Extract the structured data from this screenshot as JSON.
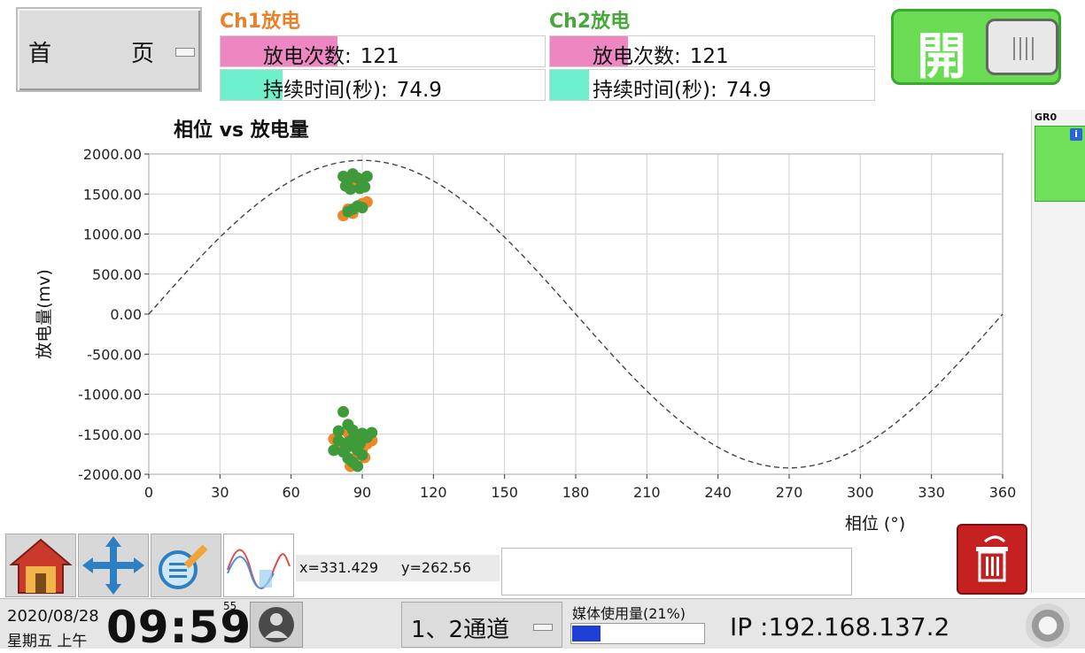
{
  "header": {
    "home_dropdown": {
      "label_a": "首",
      "label_b": "页"
    },
    "channels": [
      {
        "title": "Ch1放电",
        "title_color": "#e8822a",
        "discharge_count_label": "放电次数:",
        "discharge_count": "121",
        "duration_label": "持续时间(秒):",
        "duration": "74.9",
        "count_fill_fraction": 0.36,
        "duration_fill_fraction": 0.19,
        "count_color": "#ee86c2",
        "duration_color": "#6ef0cd"
      },
      {
        "title": "Ch2放电",
        "title_color": "#46a83a",
        "discharge_count_label": "放电次数:",
        "discharge_count": "121",
        "duration_label": "持续时间(秒):",
        "duration": "74.9",
        "count_fill_fraction": 0.24,
        "duration_fill_fraction": 0.12,
        "count_color": "#ee86c2",
        "duration_color": "#6ef0cd"
      }
    ],
    "power_toggle": {
      "state_label": "開",
      "color": "#69dc53"
    }
  },
  "chart_data": {
    "type": "scatter",
    "title": "相位 vs 放电量",
    "xlabel": "相位 (°)",
    "ylabel": "放电量(mv)",
    "xlim": [
      0,
      360
    ],
    "ylim": [
      -2000,
      2000
    ],
    "x_ticks": [
      "0",
      "30",
      "60",
      "90",
      "120",
      "150",
      "180",
      "210",
      "240",
      "270",
      "300",
      "330",
      "360"
    ],
    "y_ticks": [
      "2000.00",
      "1500.00",
      "1000.00",
      "500.00",
      "0.00",
      "-500.00",
      "-1000.00",
      "-1500.00",
      "-2000.00"
    ],
    "grid": true,
    "reference_curve": {
      "style": "dashed",
      "color": "#444444",
      "function": "sine",
      "amplitude": 1920,
      "period_deg": 360
    },
    "series": [
      {
        "color": "#f0862a",
        "points": [
          [
            82,
            1230
          ],
          [
            86,
            1260
          ],
          [
            90,
            1380
          ],
          [
            92,
            1400
          ],
          [
            84,
            1310
          ],
          [
            88,
            1650
          ],
          [
            85,
            1600
          ],
          [
            78,
            -1560
          ],
          [
            80,
            -1650
          ],
          [
            82,
            -1720
          ],
          [
            84,
            -1800
          ],
          [
            86,
            -1850
          ],
          [
            88,
            -1760
          ],
          [
            90,
            -1690
          ],
          [
            92,
            -1620
          ],
          [
            94,
            -1580
          ],
          [
            84,
            -1480
          ],
          [
            88,
            -1540
          ],
          [
            81,
            -1610
          ],
          [
            91,
            -1790
          ],
          [
            85,
            -1900
          ],
          [
            87,
            -1580
          ]
        ]
      },
      {
        "color": "#3f9a3a",
        "points": [
          [
            82,
            1720
          ],
          [
            84,
            1680
          ],
          [
            86,
            1750
          ],
          [
            88,
            1700
          ],
          [
            90,
            1650
          ],
          [
            92,
            1720
          ],
          [
            83,
            1600
          ],
          [
            85,
            1560
          ],
          [
            89,
            1570
          ],
          [
            91,
            1590
          ],
          [
            86,
            1310
          ],
          [
            88,
            1350
          ],
          [
            90,
            1330
          ],
          [
            84,
            1280
          ],
          [
            82,
            -1220
          ],
          [
            84,
            -1380
          ],
          [
            86,
            -1450
          ],
          [
            88,
            -1520
          ],
          [
            80,
            -1580
          ],
          [
            90,
            -1490
          ],
          [
            92,
            -1540
          ],
          [
            84,
            -1600
          ],
          [
            86,
            -1650
          ],
          [
            88,
            -1700
          ],
          [
            82,
            -1720
          ],
          [
            90,
            -1760
          ],
          [
            78,
            -1700
          ],
          [
            84,
            -1800
          ],
          [
            86,
            -1850
          ],
          [
            88,
            -1900
          ],
          [
            94,
            -1480
          ],
          [
            80,
            -1460
          ],
          [
            86,
            -1560
          ],
          [
            89,
            -1620
          ],
          [
            83,
            -1680
          ]
        ]
      }
    ]
  },
  "gr_panel": {
    "label": "GR0",
    "info_icon_text": "i"
  },
  "toolbar": {
    "x_label": "x=331.429",
    "y_label": "y=262.56"
  },
  "status_bar": {
    "date": "2020/08/28",
    "weekday": "星期五 上午",
    "time": "09:59",
    "seconds": "55",
    "channel_select": "1、2通道",
    "media_usage_label": "媒体使用量(21%)",
    "media_usage_fraction": 0.21,
    "ip": "IP :192.168.137.2"
  }
}
